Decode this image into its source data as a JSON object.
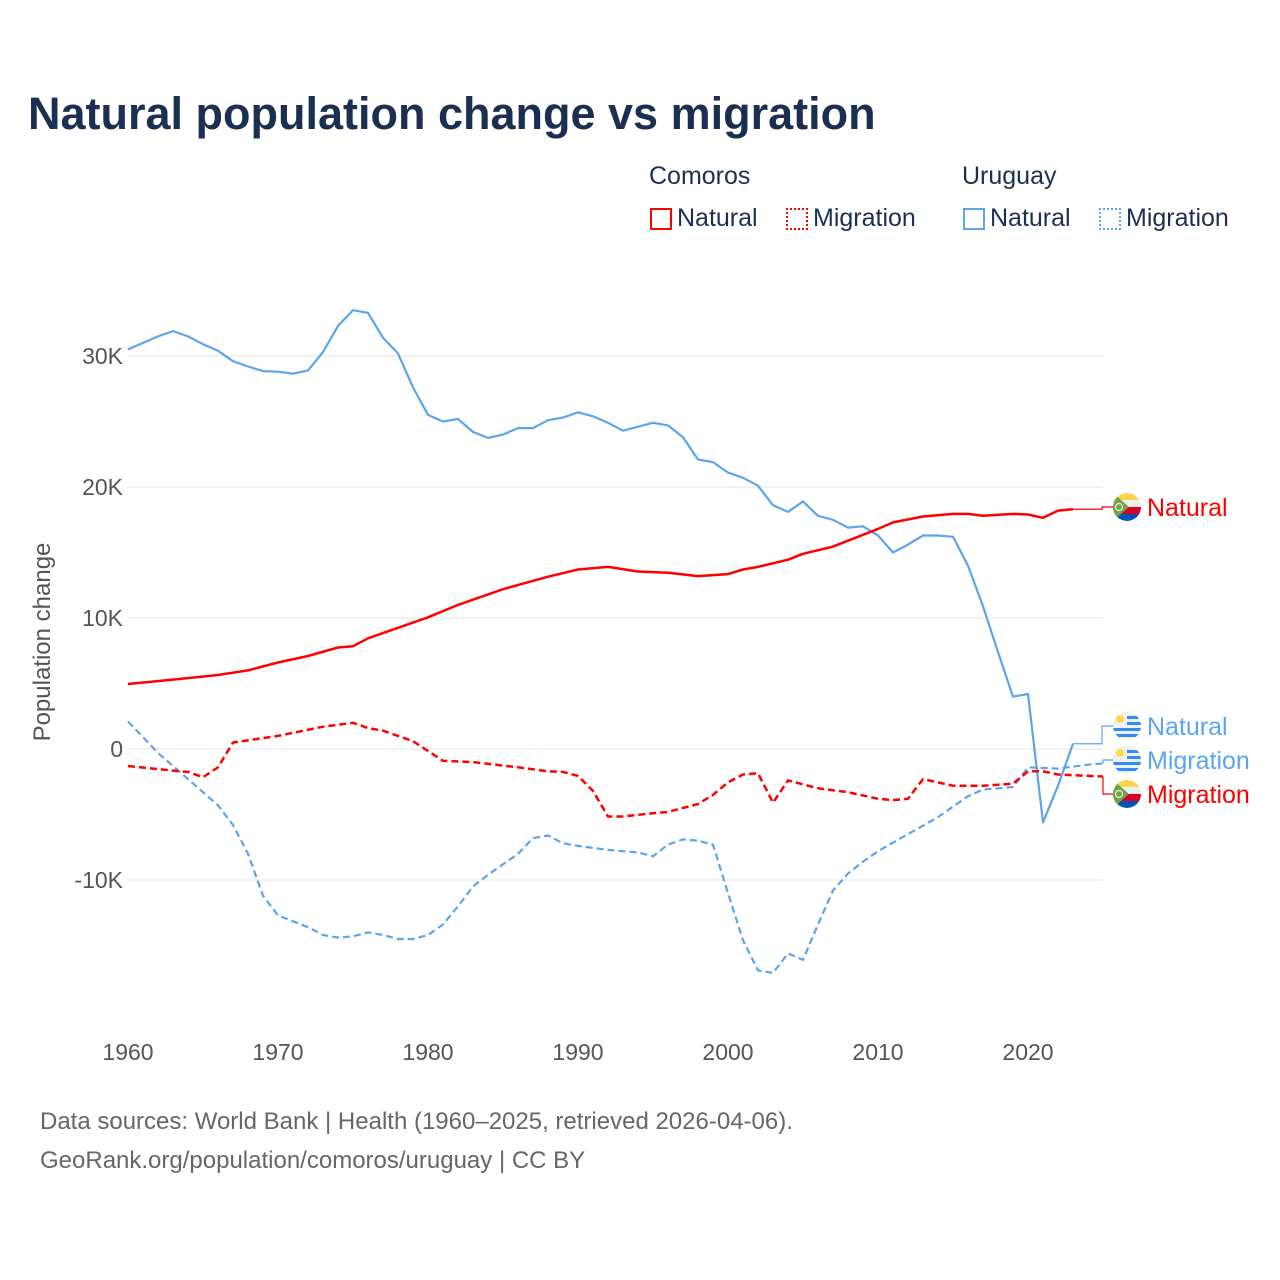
{
  "chart_data": {
    "type": "line",
    "title": "Natural population change vs migration",
    "xlabel": "",
    "ylabel": "Population change",
    "xlim": [
      1960,
      2025
    ],
    "ylim": [
      -20000,
      35000
    ],
    "x_ticks": [
      1960,
      1970,
      1980,
      1990,
      2000,
      2010,
      2020
    ],
    "x_tick_labels": [
      "1960",
      "1970",
      "1980",
      "1990",
      "2000",
      "2010",
      "2020"
    ],
    "y_ticks": [
      30000,
      20000,
      10000,
      0,
      -10000
    ],
    "y_tick_labels": [
      "30K",
      "20K",
      "10K",
      "0",
      "-10K"
    ],
    "grid": true,
    "legend": {
      "placement": "top-right",
      "groups": [
        {
          "country": "Comoros",
          "items": [
            "Natural",
            "Migration"
          ]
        },
        {
          "country": "Uruguay",
          "items": [
            "Natural",
            "Migration"
          ]
        }
      ]
    },
    "series": [
      {
        "name": "Comoros Natural",
        "label": "Natural",
        "country": "Comoros",
        "color": "#ff0000",
        "dash": false,
        "points": [
          [
            1960,
            4960
          ],
          [
            1963,
            5300
          ],
          [
            1966,
            5650
          ],
          [
            1968,
            6000
          ],
          [
            1970,
            6600
          ],
          [
            1972,
            7100
          ],
          [
            1974,
            7750
          ],
          [
            1975,
            7850
          ],
          [
            1976,
            8450
          ],
          [
            1978,
            9250
          ],
          [
            1980,
            10050
          ],
          [
            1982,
            11000
          ],
          [
            1985,
            12200
          ],
          [
            1988,
            13150
          ],
          [
            1990,
            13700
          ],
          [
            1992,
            13900
          ],
          [
            1994,
            13550
          ],
          [
            1996,
            13450
          ],
          [
            1998,
            13200
          ],
          [
            2000,
            13350
          ],
          [
            2001,
            13700
          ],
          [
            2002,
            13900
          ],
          [
            2004,
            14450
          ],
          [
            2005,
            14900
          ],
          [
            2007,
            15450
          ],
          [
            2008,
            15900
          ],
          [
            2010,
            16800
          ],
          [
            2011,
            17300
          ],
          [
            2013,
            17750
          ],
          [
            2015,
            17950
          ],
          [
            2016,
            17950
          ],
          [
            2017,
            17800
          ],
          [
            2019,
            17950
          ],
          [
            2020,
            17900
          ],
          [
            2021,
            17650
          ],
          [
            2022,
            18200
          ],
          [
            2023,
            18300
          ]
        ]
      },
      {
        "name": "Comoros Migration",
        "label": "Migration",
        "country": "Comoros",
        "color": "#ff0000",
        "dash": true,
        "points": [
          [
            1960,
            -1300
          ],
          [
            1963,
            -1650
          ],
          [
            1964,
            -1750
          ],
          [
            1965,
            -2150
          ],
          [
            1966,
            -1400
          ],
          [
            1967,
            500
          ],
          [
            1970,
            1000
          ],
          [
            1973,
            1700
          ],
          [
            1975,
            2000
          ],
          [
            1976,
            1600
          ],
          [
            1977,
            1400
          ],
          [
            1979,
            600
          ],
          [
            1980,
            -150
          ],
          [
            1981,
            -900
          ],
          [
            1983,
            -1000
          ],
          [
            1986,
            -1400
          ],
          [
            1988,
            -1700
          ],
          [
            1989,
            -1750
          ],
          [
            1990,
            -2050
          ],
          [
            1991,
            -3200
          ],
          [
            1992,
            -5150
          ],
          [
            1993,
            -5150
          ],
          [
            1995,
            -4900
          ],
          [
            1996,
            -4800
          ],
          [
            1998,
            -4200
          ],
          [
            1999,
            -3500
          ],
          [
            2000,
            -2550
          ],
          [
            2001,
            -1950
          ],
          [
            2002,
            -1850
          ],
          [
            2003,
            -4100
          ],
          [
            2004,
            -2400
          ],
          [
            2006,
            -3000
          ],
          [
            2008,
            -3300
          ],
          [
            2010,
            -3800
          ],
          [
            2011,
            -3900
          ],
          [
            2012,
            -3800
          ],
          [
            2013,
            -2300
          ],
          [
            2015,
            -2800
          ],
          [
            2017,
            -2800
          ],
          [
            2019,
            -2650
          ],
          [
            2020,
            -1700
          ],
          [
            2021,
            -1700
          ],
          [
            2022,
            -1950
          ],
          [
            2025,
            -2100
          ]
        ]
      },
      {
        "name": "Uruguay Natural",
        "label": "Natural",
        "country": "Uruguay",
        "color": "#5aa5ec",
        "dash": false,
        "points": [
          [
            1960,
            30500
          ],
          [
            1961,
            31000
          ],
          [
            1962,
            31500
          ],
          [
            1963,
            31900
          ],
          [
            1964,
            31500
          ],
          [
            1965,
            30900
          ],
          [
            1966,
            30400
          ],
          [
            1967,
            29600
          ],
          [
            1968,
            29200
          ],
          [
            1969,
            28850
          ],
          [
            1970,
            28800
          ],
          [
            1971,
            28650
          ],
          [
            1972,
            28900
          ],
          [
            1973,
            30300
          ],
          [
            1974,
            32300
          ],
          [
            1975,
            33500
          ],
          [
            1976,
            33300
          ],
          [
            1977,
            31400
          ],
          [
            1978,
            30200
          ],
          [
            1979,
            27600
          ],
          [
            1980,
            25500
          ],
          [
            1981,
            25000
          ],
          [
            1982,
            25200
          ],
          [
            1983,
            24200
          ],
          [
            1984,
            23750
          ],
          [
            1985,
            24000
          ],
          [
            1986,
            24500
          ],
          [
            1987,
            24500
          ],
          [
            1988,
            25100
          ],
          [
            1989,
            25300
          ],
          [
            1990,
            25700
          ],
          [
            1991,
            25400
          ],
          [
            1992,
            24900
          ],
          [
            1993,
            24300
          ],
          [
            1994,
            24600
          ],
          [
            1995,
            24900
          ],
          [
            1996,
            24700
          ],
          [
            1997,
            23800
          ],
          [
            1998,
            22100
          ],
          [
            1999,
            21900
          ],
          [
            2000,
            21100
          ],
          [
            2001,
            20700
          ],
          [
            2002,
            20100
          ],
          [
            2003,
            18600
          ],
          [
            2004,
            18100
          ],
          [
            2005,
            18900
          ],
          [
            2006,
            17800
          ],
          [
            2007,
            17500
          ],
          [
            2008,
            16900
          ],
          [
            2009,
            17000
          ],
          [
            2010,
            16300
          ],
          [
            2011,
            15000
          ],
          [
            2012,
            15600
          ],
          [
            2013,
            16300
          ],
          [
            2014,
            16300
          ],
          [
            2015,
            16200
          ],
          [
            2016,
            14000
          ],
          [
            2017,
            10900
          ],
          [
            2018,
            7400
          ],
          [
            2019,
            4000
          ],
          [
            2020,
            4200
          ],
          [
            2021,
            -5600
          ],
          [
            2022,
            -2800
          ],
          [
            2023,
            400
          ]
        ]
      },
      {
        "name": "Uruguay Migration",
        "label": "Migration",
        "country": "Uruguay",
        "color": "#5aa5ec",
        "dash": true,
        "points": [
          [
            1960,
            2100
          ],
          [
            1962,
            -300
          ],
          [
            1964,
            -2300
          ],
          [
            1966,
            -4300
          ],
          [
            1967,
            -5800
          ],
          [
            1968,
            -8000
          ],
          [
            1969,
            -11200
          ],
          [
            1970,
            -12700
          ],
          [
            1972,
            -13600
          ],
          [
            1973,
            -14200
          ],
          [
            1974,
            -14400
          ],
          [
            1975,
            -14300
          ],
          [
            1976,
            -14000
          ],
          [
            1977,
            -14200
          ],
          [
            1978,
            -14500
          ],
          [
            1979,
            -14500
          ],
          [
            1980,
            -14200
          ],
          [
            1981,
            -13400
          ],
          [
            1982,
            -12000
          ],
          [
            1983,
            -10500
          ],
          [
            1984,
            -9600
          ],
          [
            1985,
            -8800
          ],
          [
            1986,
            -8000
          ],
          [
            1987,
            -6800
          ],
          [
            1988,
            -6600
          ],
          [
            1989,
            -7200
          ],
          [
            1990,
            -7400
          ],
          [
            1992,
            -7700
          ],
          [
            1994,
            -7900
          ],
          [
            1995,
            -8200
          ],
          [
            1996,
            -7300
          ],
          [
            1997,
            -6900
          ],
          [
            1998,
            -7000
          ],
          [
            1999,
            -7300
          ],
          [
            2000,
            -11000
          ],
          [
            2001,
            -14600
          ],
          [
            2002,
            -16900
          ],
          [
            2003,
            -17100
          ],
          [
            2004,
            -15600
          ],
          [
            2005,
            -16100
          ],
          [
            2006,
            -13400
          ],
          [
            2007,
            -10800
          ],
          [
            2008,
            -9500
          ],
          [
            2009,
            -8600
          ],
          [
            2010,
            -7800
          ],
          [
            2012,
            -6500
          ],
          [
            2014,
            -5200
          ],
          [
            2016,
            -3600
          ],
          [
            2017,
            -3100
          ],
          [
            2019,
            -2900
          ],
          [
            2020,
            -1400
          ],
          [
            2022,
            -1500
          ],
          [
            2024,
            -1200
          ],
          [
            2025,
            -1100
          ]
        ]
      }
    ]
  },
  "footer": {
    "line1": "Data sources: World Bank | Health (1960–2025, retrieved 2026-04-06).",
    "line2": "GeoRank.org/population/comoros/uruguay | CC BY"
  }
}
